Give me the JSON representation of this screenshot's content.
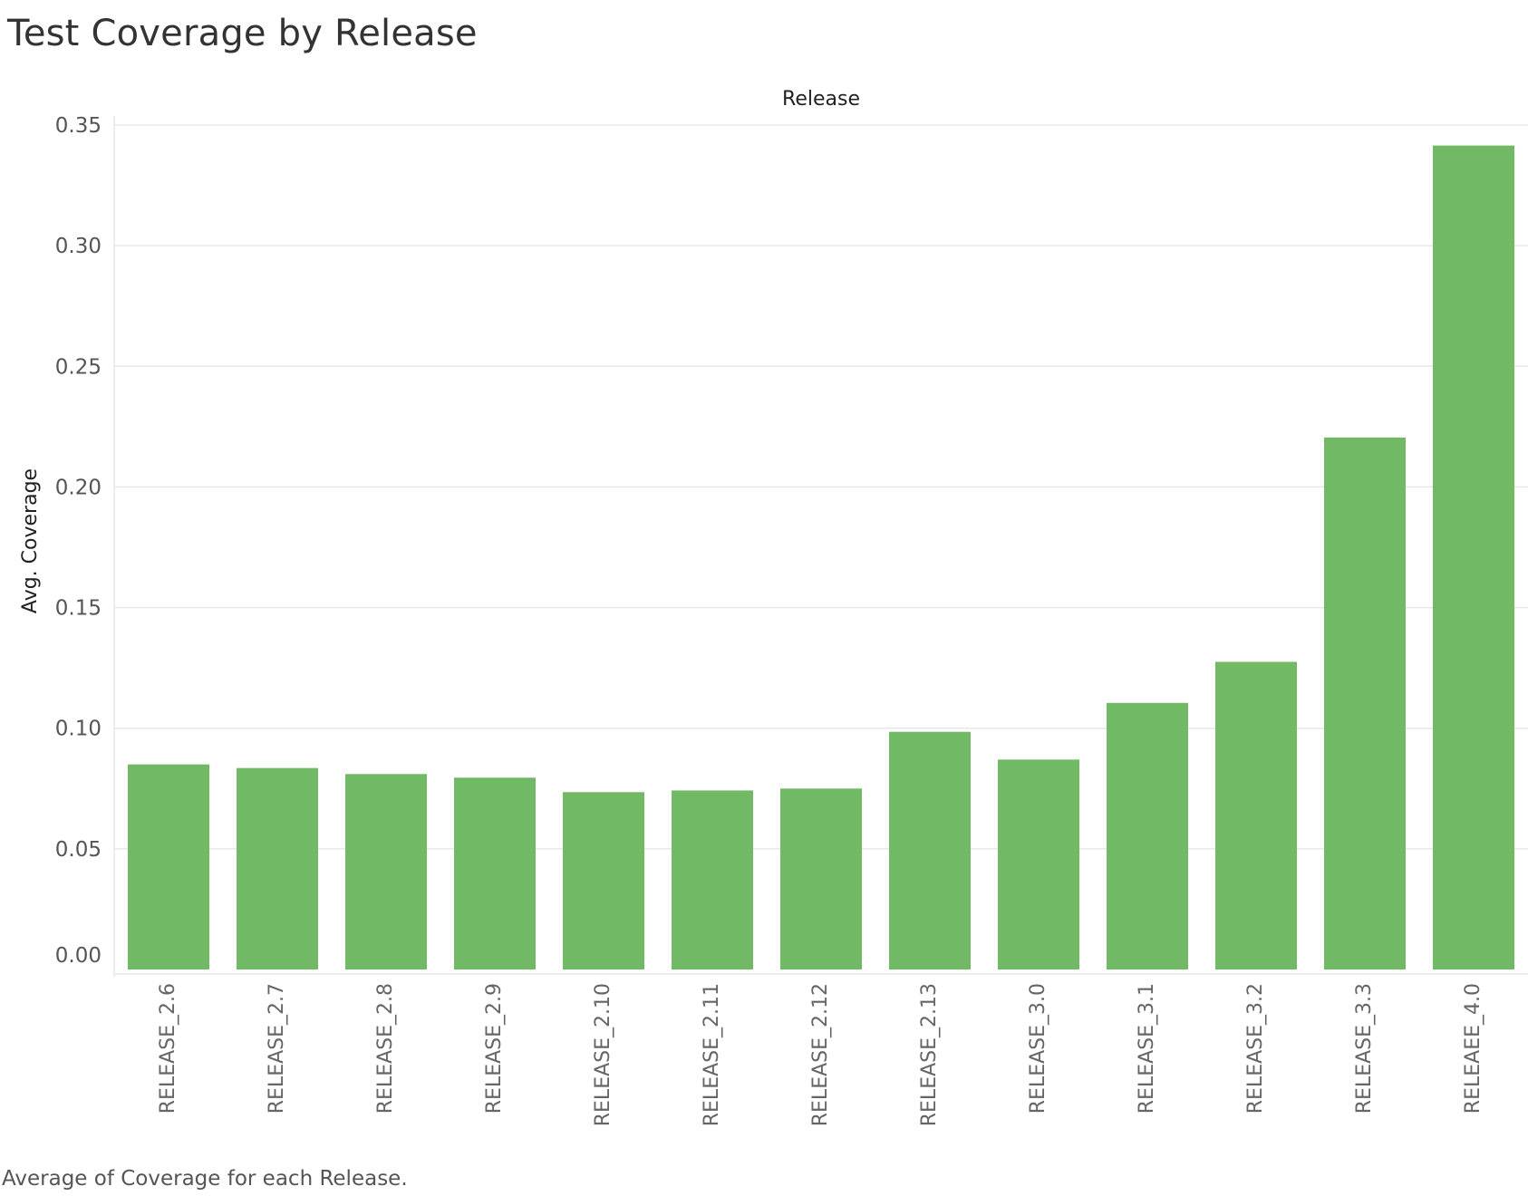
{
  "page": {
    "title": "Test Coverage by Release",
    "caption": "Average of Coverage for each Release."
  },
  "chart_data": {
    "type": "bar",
    "title": "Test Coverage by Release",
    "xlabel": "Release",
    "ylabel": "Avg. Coverage",
    "categories": [
      "RELEASE_2.6",
      "RELEASE_2.7",
      "RELEASE_2.8",
      "RELEASE_2.9",
      "RELEASE_2.10",
      "RELEASE_2.11",
      "RELEASE_2.12",
      "RELEASE_2.13",
      "RELEASE_3.0",
      "RELEASE_3.1",
      "RELEASE_3.2",
      "RELEASE_3.3",
      "RELEAEE_4.0"
    ],
    "values": [
      0.085,
      0.0835,
      0.081,
      0.0795,
      0.0735,
      0.0742,
      0.075,
      0.0985,
      0.087,
      0.1105,
      0.1275,
      0.2205,
      0.3415
    ],
    "ylim": [
      0,
      0.35
    ],
    "yticks": [
      "0.00",
      "0.05",
      "0.10",
      "0.15",
      "0.20",
      "0.25",
      "0.30",
      "0.35"
    ],
    "bar_color": "#72b966",
    "grid_color": "#e8e8e8",
    "grid": true,
    "legend": "none"
  }
}
